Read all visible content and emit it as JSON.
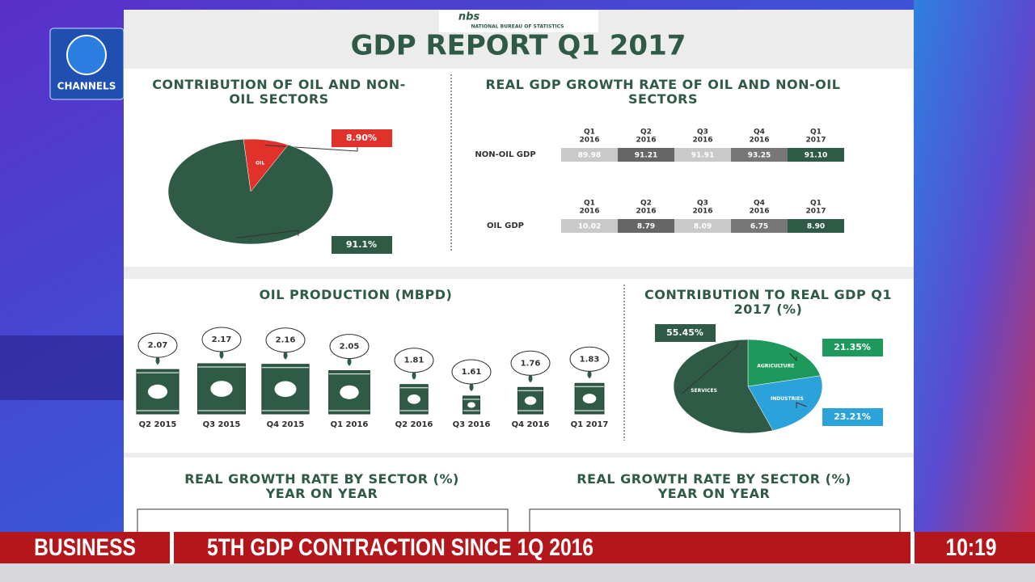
{
  "channel": {
    "name": "CHANNELS"
  },
  "report": {
    "logo": "nbs",
    "source": "NATIONAL BUREAU OF STATISTICS",
    "title": "GDP REPORT Q1 2017"
  },
  "chart_data": [
    {
      "type": "pie",
      "title": "CONTRIBUTION OF OIL AND NON-OIL SECTORS",
      "categories": [
        "OIL",
        null
      ],
      "values": [
        8.9,
        91.1
      ],
      "value_labels": [
        "8.90%",
        "91.1%"
      ],
      "colors": [
        "#e0312b",
        "#2f5a45"
      ]
    },
    {
      "type": "pie",
      "title": "CONTRIBUTION TO REAL GDP Q1 2017 (%)",
      "categories": [
        "AGRICULTURE",
        "INDUSTRIES",
        "SERVICES"
      ],
      "values": [
        21.35,
        23.21,
        55.45
      ],
      "value_labels": [
        "21.35%",
        "23.21%",
        "55.45%"
      ],
      "colors": [
        "#1d9a5b",
        "#2ba3da",
        "#2f5a45"
      ]
    },
    {
      "type": "bar",
      "title": "OIL PRODUCTION (MBPD)",
      "categories": [
        "Q2 2015",
        "Q3 2015",
        "Q4 2015",
        "Q1 2016",
        "Q2 2016",
        "Q3 2016",
        "Q4 2016",
        "Q1 2017"
      ],
      "values": [
        2.07,
        2.17,
        2.16,
        2.05,
        1.81,
        1.61,
        1.76,
        1.83
      ],
      "color": "#2f5a45"
    }
  ],
  "growth_table": {
    "title": "REAL GDP GROWTH RATE OF OIL AND NON-OIL SECTORS",
    "rows": [
      {
        "label": "NON-OIL GDP",
        "columns": [
          {
            "quarter": "Q1",
            "year": "2016",
            "value": "89.98"
          },
          {
            "quarter": "Q2",
            "year": "2016",
            "value": "91.21"
          },
          {
            "quarter": "Q3",
            "year": "2016",
            "value": "91.91"
          },
          {
            "quarter": "Q4",
            "year": "2016",
            "value": "93.25"
          },
          {
            "quarter": "Q1",
            "year": "2017",
            "value": "91.10"
          }
        ]
      },
      {
        "label": "OIL GDP",
        "columns": [
          {
            "quarter": "Q1",
            "year": "2016",
            "value": "10.02"
          },
          {
            "quarter": "Q2",
            "year": "2016",
            "value": "8.79"
          },
          {
            "quarter": "Q3",
            "year": "2016",
            "value": "8.09"
          },
          {
            "quarter": "Q4",
            "year": "2016",
            "value": "6.75"
          },
          {
            "quarter": "Q1",
            "year": "2017",
            "value": "8.90"
          }
        ]
      }
    ]
  },
  "sector_growth": {
    "titles": [
      "REAL GROWTH RATE BY SECTOR (%) YEAR ON YEAR",
      "REAL GROWTH RATE BY SECTOR (%) YEAR ON YEAR"
    ]
  },
  "ticker": {
    "section": "BUSINESS",
    "headline": "5TH GDP CONTRACTION SINCE 1Q 2016",
    "time": "10:19"
  }
}
